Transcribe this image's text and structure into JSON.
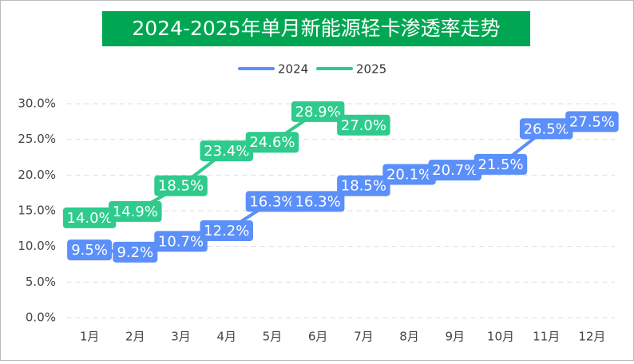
{
  "chart_data": {
    "type": "line",
    "title": "2024-2025年单月新能源轻卡渗透率走势",
    "categories": [
      "1月",
      "2月",
      "3月",
      "4月",
      "5月",
      "6月",
      "7月",
      "8月",
      "9月",
      "10月",
      "11月",
      "12月"
    ],
    "series": [
      {
        "name": "2024",
        "color": "#5b8ff9",
        "values": [
          9.5,
          9.2,
          10.7,
          12.2,
          16.3,
          16.3,
          18.5,
          20.1,
          20.7,
          21.5,
          26.5,
          27.5
        ],
        "value_labels": [
          "9.5%",
          "9.2%",
          "10.7%",
          "12.2%",
          "16.3%",
          "16.3%",
          "18.5%",
          "20.1%",
          "20.7%",
          "21.5%",
          "26.5%",
          "27.5%"
        ]
      },
      {
        "name": "2025",
        "color": "#2ecb8c",
        "values": [
          14.0,
          14.9,
          18.5,
          23.4,
          24.6,
          28.9,
          27.0,
          null,
          null,
          null,
          null,
          null
        ],
        "value_labels": [
          "14.0%",
          "14.9%",
          "18.5%",
          "23.4%",
          "24.6%",
          "28.9%",
          "27.0%",
          null,
          null,
          null,
          null,
          null
        ]
      }
    ],
    "ylim": [
      0,
      30
    ],
    "yticks": [
      {
        "value": 0,
        "label": "0.0%"
      },
      {
        "value": 5,
        "label": "5.0%"
      },
      {
        "value": 10,
        "label": "10.0%"
      },
      {
        "value": 15,
        "label": "15.0%"
      },
      {
        "value": 20,
        "label": "20.0%"
      },
      {
        "value": 25,
        "label": "25.0%"
      },
      {
        "value": 30,
        "label": "30.0%"
      }
    ],
    "grid": true,
    "legend": "top"
  }
}
